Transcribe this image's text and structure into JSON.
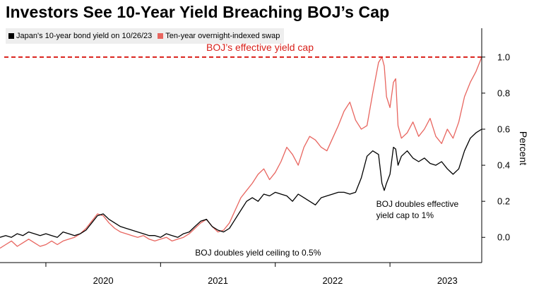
{
  "title": "Investors See 10-Year Yield Breaching BOJ’s Cap",
  "legend": [
    {
      "label": "Japan's 10-year bond yield on 10/26/23",
      "color": "#000000"
    },
    {
      "label": "Ten-year overnight-indexed swap",
      "color": "#e8655f"
    }
  ],
  "colors": {
    "cap_line": "#d9201a",
    "swap": "#e8655f",
    "jgb": "#000000",
    "axis": "#000000"
  },
  "chart_data": {
    "type": "line",
    "title": "Investors See 10-Year Yield Breaching BOJ’s Cap",
    "ylabel": "Percent",
    "xlabel": "",
    "x_ticks": [
      2020,
      2021,
      2022,
      2023
    ],
    "y_ticks": [
      0.0,
      0.2,
      0.4,
      0.6,
      0.8,
      1.0
    ],
    "y_tick_labels": [
      "0.0",
      "0.2",
      "0.4",
      "0.6",
      "0.8",
      "1.0"
    ],
    "ylim": [
      -0.14,
      1.16
    ],
    "xlim": [
      2019.6,
      2023.8
    ],
    "grid": false,
    "legend_position": "top-left",
    "reference_line": {
      "y": 1.0,
      "label": "BOJ’s effective yield cap",
      "style": "dashed"
    },
    "annotations": [
      {
        "text": "BOJ doubles yield ceiling to 0.5%",
        "x": 2021.85,
        "y": -0.1
      },
      {
        "text": [
          "BOJ doubles effective",
          "yield cap to 1%"
        ],
        "x": 2022.88,
        "y": 0.17
      }
    ],
    "series": [
      {
        "name": "Japan's 10-year bond yield on 10/26/23",
        "x": [
          2019.6,
          2019.65,
          2019.7,
          2019.75,
          2019.8,
          2019.85,
          2019.9,
          2019.95,
          2020.0,
          2020.05,
          2020.1,
          2020.15,
          2020.2,
          2020.25,
          2020.3,
          2020.35,
          2020.4,
          2020.45,
          2020.5,
          2020.55,
          2020.6,
          2020.65,
          2020.7,
          2020.75,
          2020.8,
          2020.85,
          2020.9,
          2020.95,
          2021.0,
          2021.05,
          2021.1,
          2021.15,
          2021.2,
          2021.25,
          2021.3,
          2021.35,
          2021.4,
          2021.45,
          2021.5,
          2021.55,
          2021.6,
          2021.65,
          2021.7,
          2021.75,
          2021.8,
          2021.85,
          2021.9,
          2021.95,
          2022.0,
          2022.05,
          2022.1,
          2022.15,
          2022.2,
          2022.25,
          2022.3,
          2022.35,
          2022.4,
          2022.45,
          2022.5,
          2022.55,
          2022.6,
          2022.65,
          2022.7,
          2022.75,
          2022.8,
          2022.85,
          2022.9,
          2022.93,
          2022.95,
          2022.97,
          2023.0,
          2023.03,
          2023.05,
          2023.07,
          2023.1,
          2023.15,
          2023.2,
          2023.25,
          2023.3,
          2023.35,
          2023.4,
          2023.45,
          2023.5,
          2023.55,
          2023.6,
          2023.65,
          2023.7,
          2023.75,
          2023.8
        ],
        "values": [
          0.0,
          0.01,
          0.0,
          0.02,
          0.01,
          0.03,
          0.02,
          0.01,
          0.02,
          0.01,
          0.0,
          0.03,
          0.02,
          0.01,
          0.02,
          0.04,
          0.08,
          0.12,
          0.13,
          0.1,
          0.08,
          0.06,
          0.05,
          0.04,
          0.03,
          0.02,
          0.01,
          0.01,
          0.0,
          0.02,
          0.01,
          0.0,
          0.02,
          0.03,
          0.06,
          0.09,
          0.1,
          0.06,
          0.04,
          0.03,
          0.05,
          0.1,
          0.15,
          0.2,
          0.22,
          0.2,
          0.24,
          0.23,
          0.25,
          0.24,
          0.23,
          0.2,
          0.24,
          0.22,
          0.2,
          0.18,
          0.22,
          0.23,
          0.24,
          0.25,
          0.25,
          0.24,
          0.25,
          0.33,
          0.45,
          0.48,
          0.46,
          0.3,
          0.26,
          0.3,
          0.35,
          0.5,
          0.49,
          0.4,
          0.45,
          0.48,
          0.44,
          0.42,
          0.44,
          0.41,
          0.4,
          0.42,
          0.38,
          0.35,
          0.38,
          0.48,
          0.55,
          0.58,
          0.6
        ]
      },
      {
        "name": "Ten-year overnight-indexed swap",
        "x": [
          2019.6,
          2019.65,
          2019.7,
          2019.75,
          2019.8,
          2019.85,
          2019.9,
          2019.95,
          2020.0,
          2020.05,
          2020.1,
          2020.15,
          2020.2,
          2020.25,
          2020.3,
          2020.35,
          2020.4,
          2020.45,
          2020.5,
          2020.55,
          2020.6,
          2020.65,
          2020.7,
          2020.75,
          2020.8,
          2020.85,
          2020.9,
          2020.95,
          2021.0,
          2021.05,
          2021.1,
          2021.15,
          2021.2,
          2021.25,
          2021.3,
          2021.35,
          2021.4,
          2021.45,
          2021.5,
          2021.55,
          2021.6,
          2021.65,
          2021.7,
          2021.75,
          2021.8,
          2021.85,
          2021.9,
          2021.95,
          2022.0,
          2022.05,
          2022.1,
          2022.15,
          2022.2,
          2022.25,
          2022.3,
          2022.35,
          2022.4,
          2022.45,
          2022.5,
          2022.55,
          2022.6,
          2022.65,
          2022.7,
          2022.75,
          2022.8,
          2022.85,
          2022.9,
          2022.93,
          2022.95,
          2022.97,
          2023.0,
          2023.03,
          2023.05,
          2023.07,
          2023.1,
          2023.15,
          2023.2,
          2023.25,
          2023.3,
          2023.35,
          2023.4,
          2023.45,
          2023.5,
          2023.55,
          2023.6,
          2023.65,
          2023.7,
          2023.75,
          2023.8
        ],
        "values": [
          -0.06,
          -0.04,
          -0.02,
          -0.05,
          -0.03,
          -0.01,
          -0.03,
          -0.05,
          -0.04,
          -0.02,
          -0.04,
          -0.02,
          -0.01,
          0.0,
          0.02,
          0.05,
          0.09,
          0.13,
          0.12,
          0.08,
          0.05,
          0.03,
          0.02,
          0.01,
          0.0,
          0.01,
          -0.01,
          -0.02,
          -0.01,
          0.0,
          -0.02,
          -0.01,
          0.0,
          0.02,
          0.05,
          0.08,
          0.1,
          0.06,
          0.03,
          0.04,
          0.08,
          0.15,
          0.22,
          0.26,
          0.3,
          0.35,
          0.38,
          0.32,
          0.36,
          0.42,
          0.5,
          0.46,
          0.4,
          0.5,
          0.56,
          0.54,
          0.5,
          0.48,
          0.55,
          0.62,
          0.7,
          0.75,
          0.65,
          0.6,
          0.62,
          0.8,
          0.97,
          1.0,
          0.95,
          0.78,
          0.72,
          0.86,
          0.88,
          0.62,
          0.55,
          0.58,
          0.64,
          0.56,
          0.6,
          0.66,
          0.56,
          0.52,
          0.6,
          0.55,
          0.64,
          0.78,
          0.86,
          0.92,
          1.0
        ]
      }
    ]
  }
}
